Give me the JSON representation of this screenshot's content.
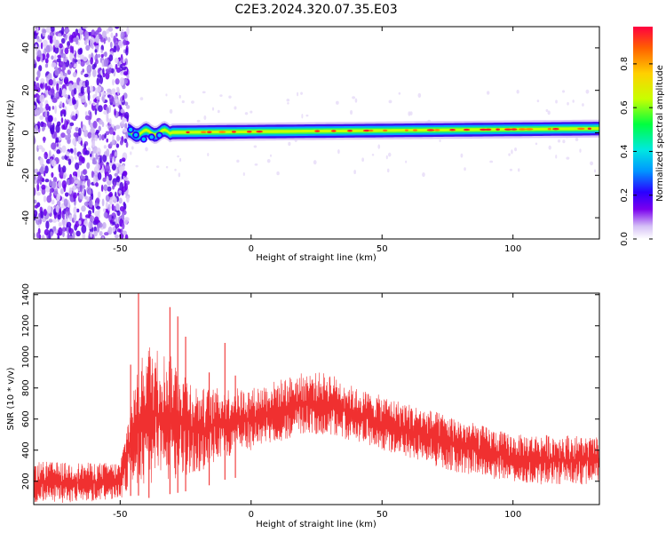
{
  "title": "C2E3.2024.320.07.35.E03",
  "chart_data": [
    {
      "type": "heatmap",
      "name": "spectrogram",
      "xlabel": "Height of straight line (km)",
      "ylabel": "Frequency (Hz)",
      "xlim": [
        -83,
        133
      ],
      "ylim": [
        -50,
        50
      ],
      "xticks": [
        -50,
        0,
        50,
        100
      ],
      "yticks": [
        -40,
        -20,
        0,
        20,
        40
      ],
      "noise_region": [
        -83,
        -47
      ],
      "signal_band": {
        "start_x": -47,
        "center_freq_hz": 0,
        "drift_to_hz": 2
      },
      "colorbar": {
        "label": "Normalized spectral amplitude",
        "range": [
          0.0,
          0.97
        ],
        "ticks": [
          0.0,
          0.2,
          0.4,
          0.6,
          0.8
        ],
        "colormap": [
          "#ffffff",
          "#d5c0f6",
          "#7a00ee",
          "#2a00ff",
          "#0096ff",
          "#00e8e0",
          "#00ff40",
          "#c8ff00",
          "#ffd000",
          "#ff6000",
          "#ff0040"
        ]
      }
    },
    {
      "type": "line",
      "name": "snr",
      "xlabel": "Height of straight line (km)",
      "ylabel": "SNR (10 * v/v)",
      "xlim": [
        -83,
        133
      ],
      "ylim": [
        50,
        1410
      ],
      "xticks": [
        -50,
        0,
        50,
        100
      ],
      "yticks": [
        200,
        400,
        600,
        800,
        1000,
        1200,
        1400
      ],
      "color": "#f03030",
      "envelope": [
        {
          "x": -83,
          "low": 60,
          "high": 330
        },
        {
          "x": -70,
          "low": 60,
          "high": 320
        },
        {
          "x": -50,
          "low": 80,
          "high": 320
        },
        {
          "x": -45,
          "low": 200,
          "high": 800
        },
        {
          "x": -40,
          "low": 150,
          "high": 1100
        },
        {
          "x": -30,
          "low": 200,
          "high": 1000
        },
        {
          "x": -20,
          "low": 250,
          "high": 800
        },
        {
          "x": -10,
          "low": 350,
          "high": 800
        },
        {
          "x": 0,
          "low": 400,
          "high": 800
        },
        {
          "x": 10,
          "low": 450,
          "high": 850
        },
        {
          "x": 20,
          "low": 500,
          "high": 900
        },
        {
          "x": 30,
          "low": 500,
          "high": 900
        },
        {
          "x": 40,
          "low": 450,
          "high": 800
        },
        {
          "x": 50,
          "low": 400,
          "high": 750
        },
        {
          "x": 60,
          "low": 350,
          "high": 700
        },
        {
          "x": 70,
          "low": 300,
          "high": 650
        },
        {
          "x": 80,
          "low": 250,
          "high": 600
        },
        {
          "x": 90,
          "low": 220,
          "high": 550
        },
        {
          "x": 100,
          "low": 200,
          "high": 500
        },
        {
          "x": 110,
          "low": 180,
          "high": 500
        },
        {
          "x": 120,
          "low": 180,
          "high": 500
        },
        {
          "x": 133,
          "low": 180,
          "high": 480
        }
      ],
      "spikes": [
        {
          "x": -46,
          "y": 950
        },
        {
          "x": -43,
          "y": 1410
        },
        {
          "x": -39,
          "y": 1000
        },
        {
          "x": -31,
          "y": 1320
        },
        {
          "x": -28,
          "y": 1260
        },
        {
          "x": -25,
          "y": 1130
        },
        {
          "x": -16,
          "y": 900
        },
        {
          "x": -10,
          "y": 1090
        },
        {
          "x": -6,
          "y": 880
        }
      ]
    }
  ]
}
